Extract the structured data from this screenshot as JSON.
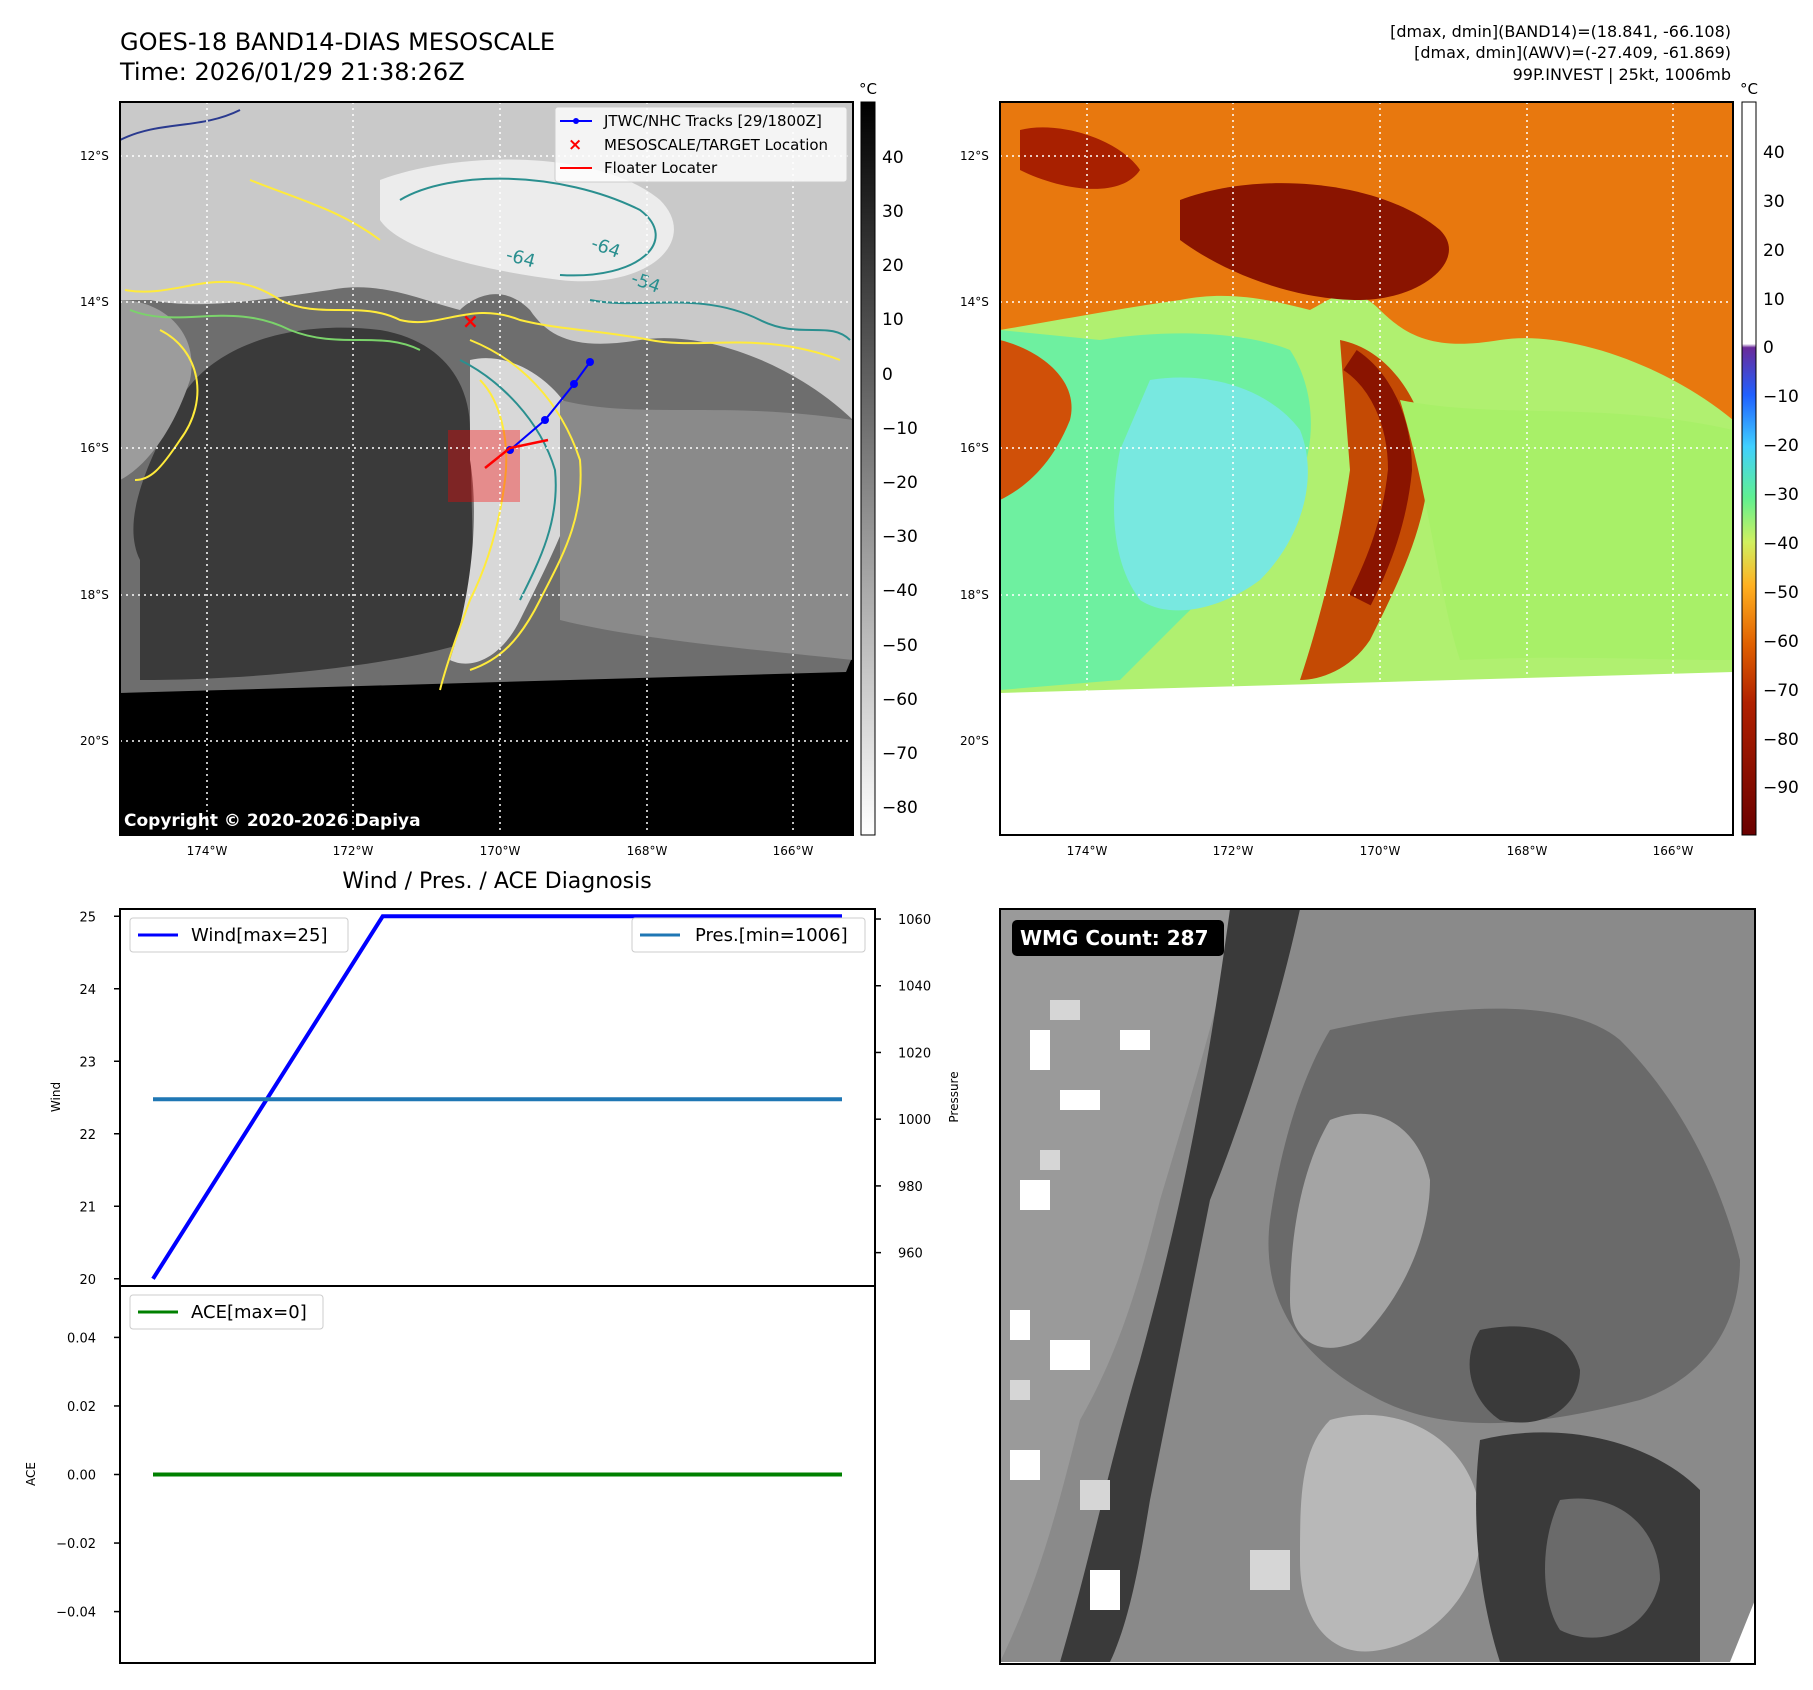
{
  "header": {
    "title": "GOES-18 BAND14-DIAS MESOSCALE",
    "time": "Time: 2026/01/29 21:38:26Z",
    "stats_line1": "[dmax, dmin](BAND14)=(18.841, -66.108)",
    "stats_line2": "[dmax, dmin](AWV)=(-27.409, -61.869)",
    "stats_line3": "99P.INVEST | 25kt, 1006mb"
  },
  "ir_panel": {
    "legend": [
      "JTWC/NHC Tracks [29/1800Z]",
      "MESOSCALE/TARGET Location",
      "Floater Locater"
    ],
    "copyright": "Copyright © 2020-2026 Dapiya",
    "contour_labels": [
      "-64",
      "-64",
      "-54"
    ],
    "colorbar_unit": "°C",
    "colorbar_ticks": [
      "40",
      "30",
      "20",
      "10",
      "0",
      "−10",
      "−20",
      "−30",
      "−40",
      "−50",
      "−60",
      "−70",
      "−80"
    ],
    "lat_labels": [
      "12°S",
      "14°S",
      "16°S",
      "18°S",
      "20°S"
    ],
    "lon_labels": [
      "174°W",
      "172°W",
      "170°W",
      "168°W",
      "166°W"
    ],
    "colors": {
      "track": "#0000ff",
      "target": "#ff0000",
      "floater": "#ff0000",
      "contour_cold": "#ffeb3b",
      "contour_mid": "#7bd36b",
      "contour_warm": "#2a8f8f"
    }
  },
  "color_panel": {
    "colorbar_unit": "°C",
    "colorbar_ticks": [
      "40",
      "30",
      "20",
      "10",
      "0",
      "−10",
      "−20",
      "−30",
      "−40",
      "−50",
      "−60",
      "−70",
      "−80",
      "−90"
    ],
    "lat_labels": [
      "12°S",
      "14°S",
      "16°S",
      "18°S",
      "20°S"
    ],
    "lon_labels": [
      "174°W",
      "172°W",
      "170°W",
      "168°W",
      "166°W"
    ]
  },
  "diag_panel": {
    "title": "Wind / Pres. / ACE Diagnosis",
    "wind_legend": "Wind[max=25]",
    "pres_legend": "Pres.[min=1006]",
    "ace_legend": "ACE[max=0]",
    "wind_label": "Wind",
    "pres_label": "Pressure",
    "ace_label": "ACE",
    "wind_ticks": [
      "25",
      "24",
      "23",
      "22",
      "21",
      "20"
    ],
    "pres_ticks": [
      "1060",
      "1040",
      "1020",
      "1000",
      "980",
      "960"
    ],
    "ace_ticks": [
      "0.04",
      "0.02",
      "0.00",
      "−0.02",
      "−0.04"
    ],
    "colors": {
      "wind": "#0000ff",
      "pressure": "#1f77b4",
      "ace": "#008000"
    }
  },
  "wmg_panel": {
    "count_label": "WMG Count: 287"
  },
  "chart_data": [
    {
      "type": "line",
      "ylabel": "Wind",
      "ylim": [
        19.9,
        25.1
      ],
      "series": [
        {
          "name": "Wind[max=25]",
          "x": [
            0,
            1,
            2,
            3
          ],
          "values": [
            20,
            25,
            25,
            25
          ]
        }
      ]
    },
    {
      "type": "line",
      "ylabel": "Pressure",
      "ylim": [
        950,
        1063
      ],
      "series": [
        {
          "name": "Pres.[min=1006]",
          "x": [
            0,
            1,
            2,
            3
          ],
          "values": [
            1006,
            1006,
            1006,
            1006
          ]
        }
      ]
    },
    {
      "type": "line",
      "ylabel": "ACE",
      "ylim": [
        -0.055,
        0.055
      ],
      "series": [
        {
          "name": "ACE[max=0]",
          "x": [
            0,
            1,
            2,
            3
          ],
          "values": [
            0,
            0,
            0,
            0
          ]
        }
      ]
    }
  ]
}
